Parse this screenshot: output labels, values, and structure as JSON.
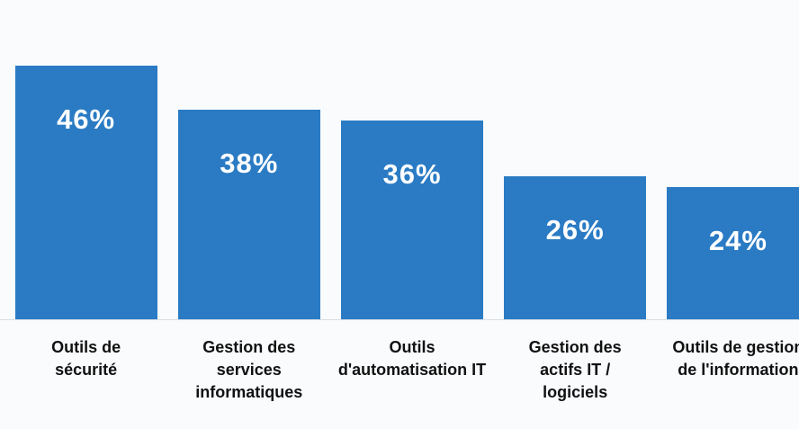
{
  "chart_data": {
    "type": "bar",
    "categories": [
      "Outils de sécurité",
      "Gestion des services informatiques",
      "Outils d'automatisation IT",
      "Gestion des actifs IT / logiciels",
      "Outils de gestion de l'information"
    ],
    "values": [
      46,
      38,
      36,
      26,
      24
    ],
    "value_labels": [
      "46%",
      "38%",
      "36%",
      "26%",
      "24%"
    ],
    "color": "#2a7bc4"
  }
}
